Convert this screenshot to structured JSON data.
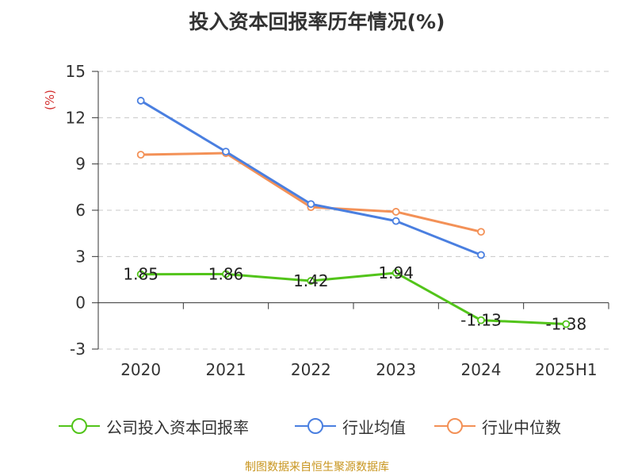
{
  "title": "投入资本回报率历年情况(%)",
  "source": "制图数据来自恒生聚源数据库",
  "chart_data": {
    "type": "line",
    "title": "投入资本回报率历年情况(%)",
    "ylabel": "(%)",
    "categories": [
      "2020",
      "2021",
      "2022",
      "2023",
      "2024",
      "2025H1"
    ],
    "ylim": [
      -3,
      15
    ],
    "yticks": [
      -3,
      0,
      3,
      6,
      9,
      12,
      15
    ],
    "grid": true,
    "legend_position": "bottom",
    "series": [
      {
        "name": "公司投入资本回报率",
        "color": "#52c41a",
        "values": [
          1.85,
          1.86,
          1.42,
          1.94,
          -1.13,
          -1.38
        ],
        "data_labels": [
          "1.85",
          "1.86",
          "1.42",
          "1.94",
          "-1.13",
          "-1.38"
        ]
      },
      {
        "name": "行业均值",
        "color": "#4a7fe0",
        "values": [
          13.1,
          9.8,
          6.4,
          5.3,
          3.1,
          null
        ]
      },
      {
        "name": "行业中位数",
        "color": "#f39157",
        "values": [
          9.6,
          9.7,
          6.2,
          5.9,
          4.6,
          null
        ]
      }
    ]
  }
}
